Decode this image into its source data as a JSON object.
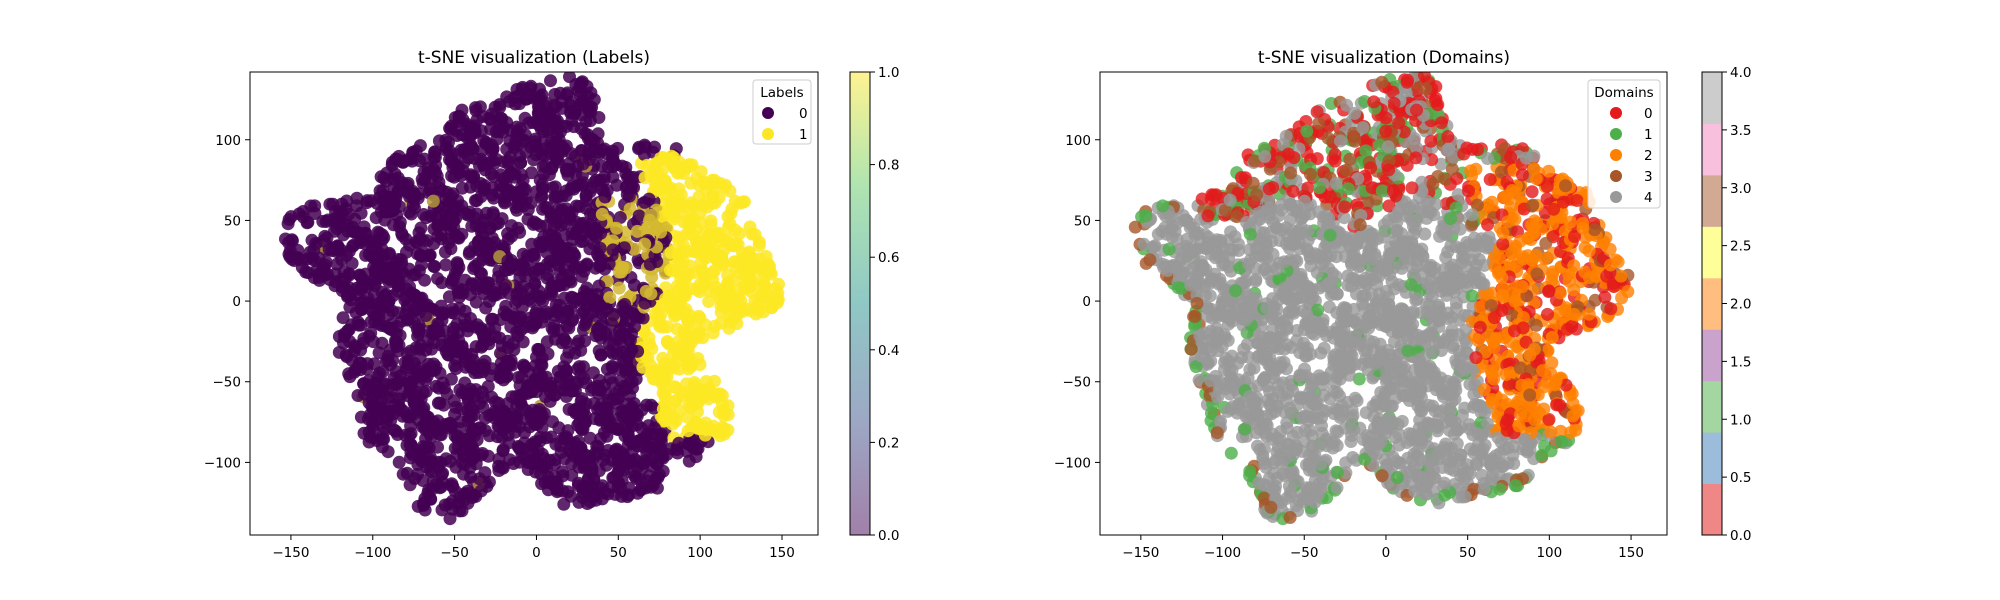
{
  "chart_data": [
    {
      "type": "scatter",
      "title": "t-SNE visualization (Labels)",
      "xlabel": "",
      "ylabel": "",
      "xlim": [
        -175,
        172
      ],
      "ylim": [
        -145,
        142
      ],
      "xticks": [
        -150,
        -100,
        -50,
        0,
        50,
        100,
        150
      ],
      "yticks": [
        -100,
        -50,
        0,
        50,
        100
      ],
      "xtick_labels": [
        "−150",
        "−100",
        "−50",
        "0",
        "50",
        "100",
        "150"
      ],
      "ytick_labels": [
        "−100",
        "−50",
        "0",
        "50",
        "100"
      ],
      "grid": false,
      "legend": {
        "title": "Labels",
        "placement": "top-right",
        "entries": [
          "0",
          "1"
        ]
      },
      "series": [
        {
          "name": "0",
          "color": "#440154"
        },
        {
          "name": "1",
          "color": "#fde725"
        }
      ],
      "colorbar": {
        "range": [
          0.0,
          1.0
        ],
        "ticks": [
          0.0,
          0.2,
          0.4,
          0.6,
          0.8,
          1.0
        ],
        "tick_labels": [
          "0.0",
          "0.2",
          "0.4",
          "0.6",
          "0.8",
          "1.0"
        ],
        "colormap": "viridis",
        "alpha": 0.5
      },
      "regions": [
        {
          "series": "0",
          "x_range": [
            -160,
            70
          ],
          "y_range": [
            -128,
            130
          ]
        },
        {
          "series": "1",
          "x_range": [
            60,
            155
          ],
          "y_range": [
            -82,
            88
          ]
        },
        {
          "series": "mixed",
          "x_range": [
            40,
            85
          ],
          "y_range": [
            -5,
            70
          ]
        }
      ]
    },
    {
      "type": "scatter",
      "title": "t-SNE visualization (Domains)",
      "xlabel": "",
      "ylabel": "",
      "xlim": [
        -175,
        172
      ],
      "ylim": [
        -145,
        142
      ],
      "xticks": [
        -150,
        -100,
        -50,
        0,
        50,
        100,
        150
      ],
      "yticks": [
        -100,
        -50,
        0,
        50,
        100
      ],
      "xtick_labels": [
        "−150",
        "−100",
        "−50",
        "0",
        "50",
        "100",
        "150"
      ],
      "ytick_labels": [
        "−100",
        "−50",
        "0",
        "50",
        "100"
      ],
      "grid": false,
      "legend": {
        "title": "Domains",
        "placement": "top-right",
        "entries": [
          "0",
          "1",
          "2",
          "3",
          "4"
        ]
      },
      "series": [
        {
          "name": "0",
          "color": "#e41a1c"
        },
        {
          "name": "1",
          "color": "#4daf4a"
        },
        {
          "name": "2",
          "color": "#ff7f00"
        },
        {
          "name": "3",
          "color": "#a65628"
        },
        {
          "name": "4",
          "color": "#999999"
        }
      ],
      "colorbar": {
        "range": [
          0.0,
          4.0
        ],
        "ticks": [
          0.0,
          0.5,
          1.0,
          1.5,
          2.0,
          2.5,
          3.0,
          3.5,
          4.0
        ],
        "tick_labels": [
          "0.0",
          "0.5",
          "1.0",
          "1.5",
          "2.0",
          "2.5",
          "3.0",
          "3.5",
          "4.0"
        ],
        "colormap": "Set1",
        "alpha": 0.5,
        "bands": [
          "#f08787",
          "#9bbcda",
          "#a3d6a0",
          "#c9a3cc",
          "#ffbd80",
          "#ffff99",
          "#d2aa93",
          "#f9c0de",
          "#cccccc"
        ]
      },
      "regions": [
        {
          "series": "4",
          "x_range": [
            -160,
            90
          ],
          "y_range": [
            -125,
            65
          ]
        },
        {
          "series": "0",
          "x_range": [
            -45,
            75
          ],
          "y_range": [
            55,
            130
          ]
        },
        {
          "series": "2",
          "x_range": [
            55,
            155
          ],
          "y_range": [
            -80,
            88
          ]
        }
      ]
    }
  ]
}
